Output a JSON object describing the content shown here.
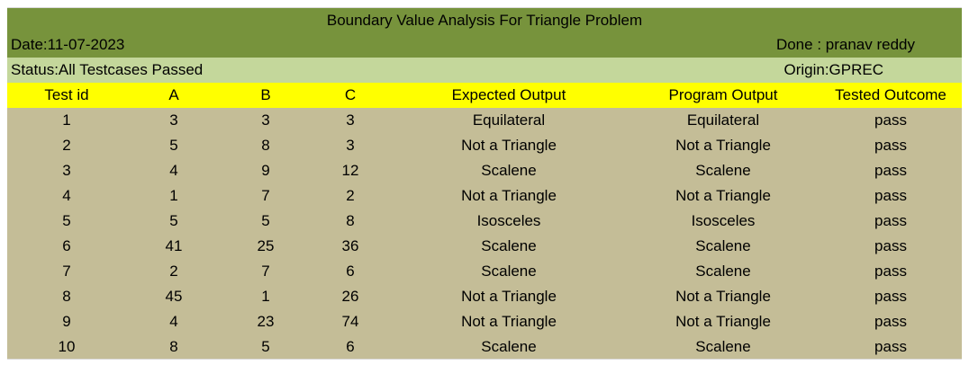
{
  "sheet": {
    "title": "Boundary Value Analysis For Triangle Problem",
    "date": "Date:11-07-2023",
    "done": "Done :  pranav reddy",
    "status": "Status:All Testcases Passed",
    "origin": "Origin:GPREC",
    "colors": {
      "title_bg": "#77933c",
      "status_bg": "#c4d79b",
      "header_bg": "#ffff00",
      "data_bg": "#c4bd97"
    }
  },
  "table": {
    "headers": {
      "id": "Test id",
      "a": "A",
      "b": "B",
      "c": "C",
      "expected": "Expected Output",
      "program": "Program Output",
      "outcome": "Tested Outcome"
    },
    "rows": [
      {
        "id": "1",
        "a": "3",
        "b": "3",
        "c": "3",
        "expected": "Equilateral",
        "program": "Equilateral",
        "outcome": "pass"
      },
      {
        "id": "2",
        "a": "5",
        "b": "8",
        "c": "3",
        "expected": "Not a Triangle",
        "program": "Not a Triangle",
        "outcome": "pass"
      },
      {
        "id": "3",
        "a": "4",
        "b": "9",
        "c": "12",
        "expected": "Scalene",
        "program": "Scalene",
        "outcome": "pass"
      },
      {
        "id": "4",
        "a": "1",
        "b": "7",
        "c": "2",
        "expected": "Not a Triangle",
        "program": "Not a Triangle",
        "outcome": "pass"
      },
      {
        "id": "5",
        "a": "5",
        "b": "5",
        "c": "8",
        "expected": "Isosceles",
        "program": "Isosceles",
        "outcome": "pass"
      },
      {
        "id": "6",
        "a": "41",
        "b": "25",
        "c": "36",
        "expected": "Scalene",
        "program": "Scalene",
        "outcome": "pass"
      },
      {
        "id": "7",
        "a": "2",
        "b": "7",
        "c": "6",
        "expected": "Scalene",
        "program": "Scalene",
        "outcome": "pass"
      },
      {
        "id": "8",
        "a": "45",
        "b": "1",
        "c": "26",
        "expected": "Not a Triangle",
        "program": "Not a Triangle",
        "outcome": "pass"
      },
      {
        "id": "9",
        "a": "4",
        "b": "23",
        "c": "74",
        "expected": "Not a Triangle",
        "program": "Not a Triangle",
        "outcome": "pass"
      },
      {
        "id": "10",
        "a": "8",
        "b": "5",
        "c": "6",
        "expected": "Scalene",
        "program": "Scalene",
        "outcome": "pass"
      }
    ]
  }
}
